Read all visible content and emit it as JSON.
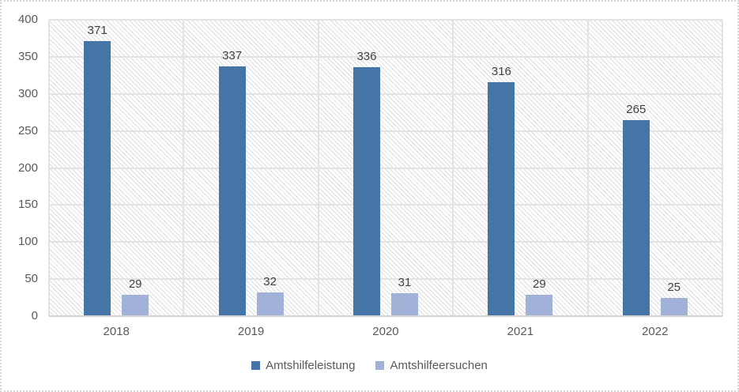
{
  "chart_data": {
    "type": "bar",
    "title": "",
    "xlabel": "",
    "ylabel": "",
    "categories": [
      "2018",
      "2019",
      "2020",
      "2021",
      "2022"
    ],
    "series": [
      {
        "name": "Amtshilfeleistung",
        "color": "#4574A7",
        "values": [
          371,
          337,
          336,
          316,
          265
        ]
      },
      {
        "name": "Amtshilfeersuchen",
        "color": "#A2B1D8",
        "values": [
          29,
          32,
          31,
          29,
          25
        ]
      }
    ],
    "ylim": [
      0,
      400
    ],
    "yticks": [
      0,
      50,
      100,
      150,
      200,
      250,
      300,
      350,
      400
    ],
    "grid": true,
    "legend_position": "bottom",
    "plot_fill_pattern": "light-diagonal-hatch",
    "axis_text_color": "#595959",
    "bar_label_color": "#404040"
  }
}
